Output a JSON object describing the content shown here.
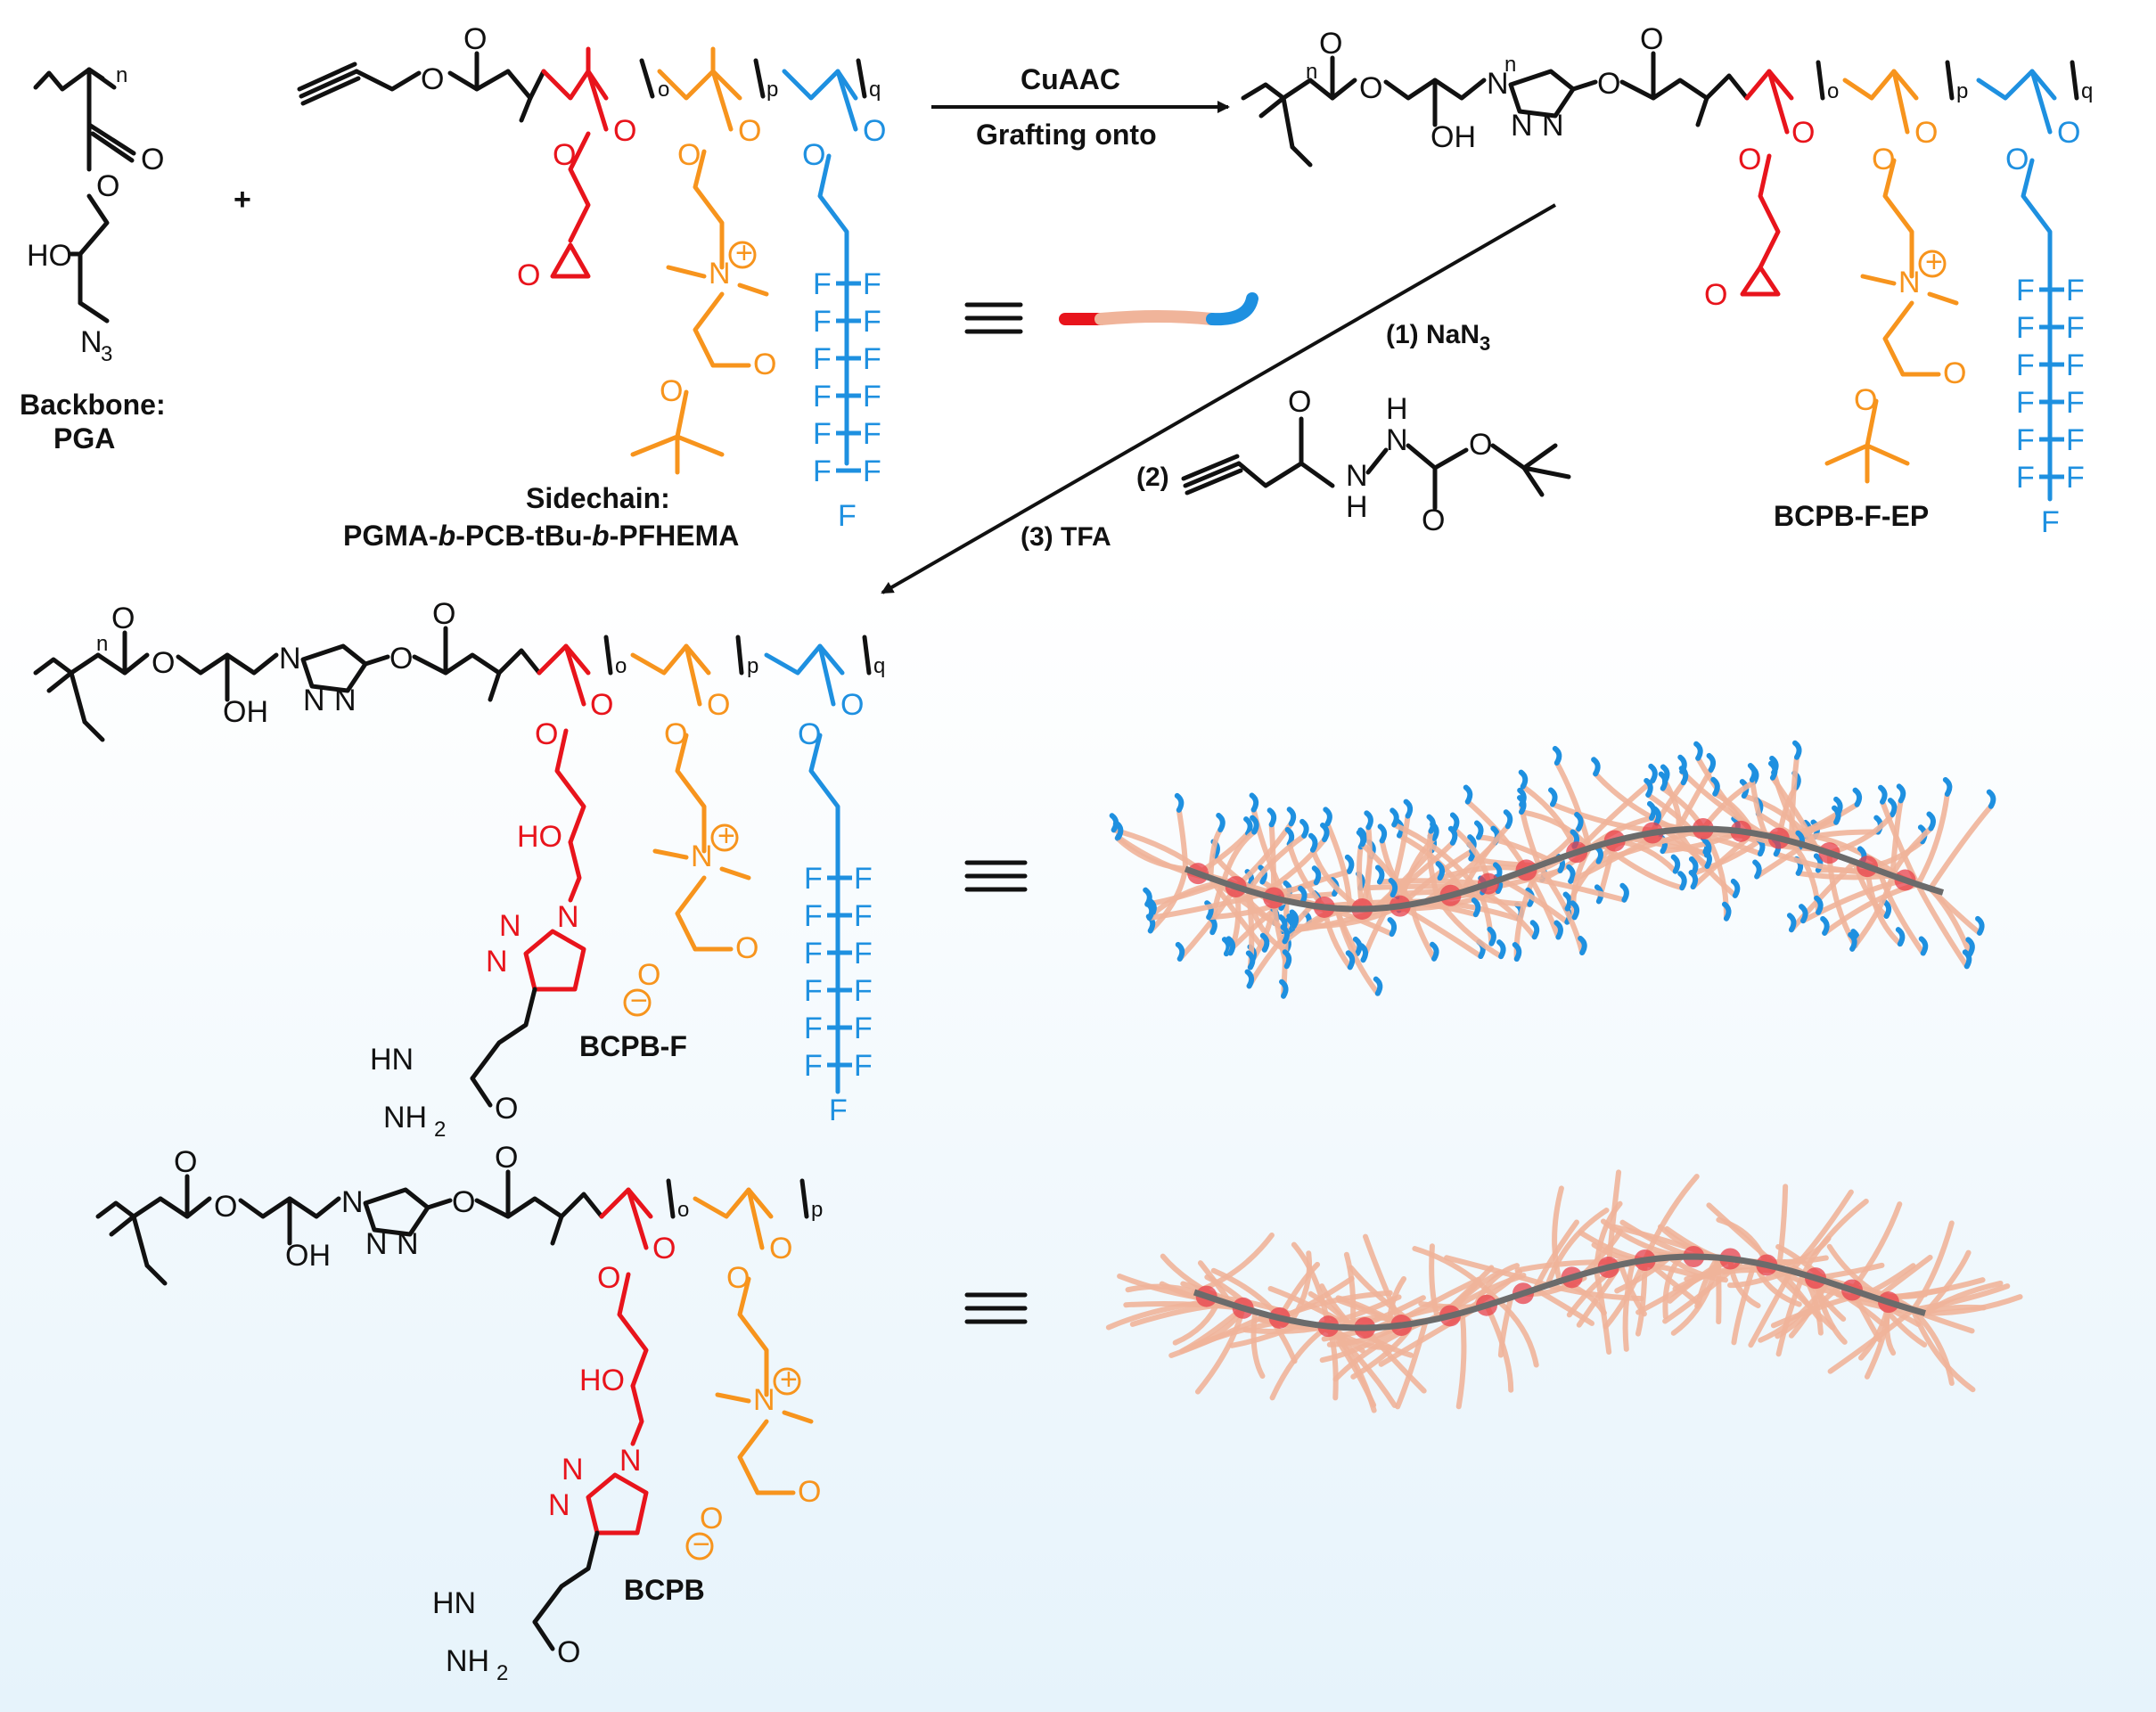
{
  "labels": {
    "backbone_line1": "Backbone:",
    "backbone_line2": "PGA",
    "sidechain_line1": "Sidechain:",
    "sidechain_parts": [
      "PGMA-",
      "b",
      "-PCB-tBu-",
      "b",
      "-PFHEMA"
    ],
    "arrow_top_1": "CuAAC",
    "arrow_top_2": "Grafting onto",
    "step1": "(1) NaN",
    "step1_sub": "3",
    "step2": "(2)",
    "step3": "(3) TFA",
    "product_ep": "BCPB-F-EP",
    "product_f": "BCPB-F",
    "product": "BCPB",
    "plus": "+"
  },
  "atoms": {
    "O": "O",
    "OH": "OH",
    "HO": "HO",
    "N": "N",
    "N3": "N",
    "N3_sub": "3",
    "F": "F",
    "H": "H",
    "HN": "HN",
    "NH": "NH",
    "NH2_sub": "2",
    "n": "n",
    "o": "o",
    "p": "p",
    "q": "q",
    "plus_charge": "+",
    "minus_charge": "−"
  },
  "colors": {
    "black": "#111111",
    "pgma_red": "#e8141c",
    "pcb_orange": "#f7941d",
    "pfhema_blue": "#1e90e0",
    "sidechain_pink": "#f0b49a",
    "core_red": "#e8404a",
    "backbone_grey": "#6b6b6b",
    "gradient_bottom": "#e6f3fb"
  },
  "icons": {
    "equivalence": "triple-bar-equivalence-icon",
    "arrow": "reaction-arrow-icon",
    "bottlebrush": "bottlebrush-cartoon-icon"
  }
}
